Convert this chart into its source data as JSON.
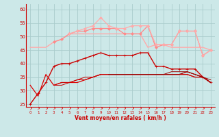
{
  "xlabel": "Vent moyen/en rafales ( km/h )",
  "bg_color": "#cce8e8",
  "grid_color": "#aacccc",
  "ylim": [
    24,
    62
  ],
  "yticks": [
    25,
    30,
    35,
    40,
    45,
    50,
    55,
    60
  ],
  "tick_color": "#cc0000",
  "lines": [
    {
      "y": [
        32,
        28,
        36,
        32,
        33,
        33,
        33,
        34,
        35,
        36,
        36,
        36,
        36,
        36,
        36,
        36,
        36,
        36,
        36,
        36,
        36,
        35,
        35,
        33
      ],
      "color": "#dd0000",
      "lw": 0.9,
      "marker": null,
      "ms": 0
    },
    {
      "y": [
        25,
        29,
        33,
        39,
        40,
        40,
        41,
        42,
        43,
        44,
        43,
        43,
        43,
        43,
        44,
        44,
        39,
        39,
        38,
        38,
        38,
        38,
        35,
        33
      ],
      "color": "#cc0000",
      "lw": 1.0,
      "marker": "+",
      "ms": 3
    },
    {
      "y": [
        null,
        null,
        null,
        32,
        32,
        33,
        34,
        34,
        35,
        36,
        36,
        36,
        36,
        36,
        36,
        36,
        36,
        36,
        36,
        36,
        36,
        35,
        35,
        33
      ],
      "color": "#cc0000",
      "lw": 0.7,
      "marker": null,
      "ms": 0
    },
    {
      "y": [
        null,
        null,
        null,
        32,
        33,
        33,
        34,
        35,
        35,
        36,
        36,
        36,
        36,
        36,
        36,
        36,
        36,
        36,
        36,
        36,
        37,
        36,
        35,
        33
      ],
      "color": "#cc0000",
      "lw": 0.7,
      "marker": null,
      "ms": 0
    },
    {
      "y": [
        null,
        null,
        null,
        null,
        null,
        null,
        null,
        null,
        null,
        null,
        36,
        36,
        36,
        36,
        36,
        36,
        36,
        36,
        37,
        37,
        37,
        36,
        35,
        34
      ],
      "color": "#990000",
      "lw": 0.7,
      "marker": null,
      "ms": 0
    },
    {
      "y": [
        null,
        null,
        null,
        null,
        null,
        null,
        null,
        null,
        null,
        null,
        36,
        36,
        36,
        36,
        36,
        36,
        36,
        36,
        36,
        36,
        37,
        36,
        35,
        33
      ],
      "color": "#990000",
      "lw": 0.7,
      "marker": null,
      "ms": 0
    },
    {
      "y": [
        46,
        46,
        46,
        48,
        49,
        51,
        51,
        51,
        51,
        51,
        51,
        51,
        51,
        51,
        51,
        46,
        47,
        47,
        46,
        46,
        46,
        46,
        46,
        45
      ],
      "color": "#ffaaaa",
      "lw": 1.0,
      "marker": null,
      "ms": 0
    },
    {
      "y": [
        null,
        null,
        null,
        48,
        49,
        51,
        52,
        52,
        53,
        53,
        53,
        53,
        51,
        51,
        51,
        54,
        46,
        47,
        47,
        52,
        52,
        52,
        43,
        45
      ],
      "color": "#ff8888",
      "lw": 0.9,
      "marker": "D",
      "ms": 2
    },
    {
      "y": [
        null,
        null,
        null,
        null,
        null,
        51,
        52,
        53,
        54,
        57,
        54,
        53,
        53,
        54,
        54,
        54,
        47,
        47,
        47,
        52,
        52,
        52,
        43,
        45
      ],
      "color": "#ffaaaa",
      "lw": 0.9,
      "marker": "D",
      "ms": 2
    }
  ]
}
